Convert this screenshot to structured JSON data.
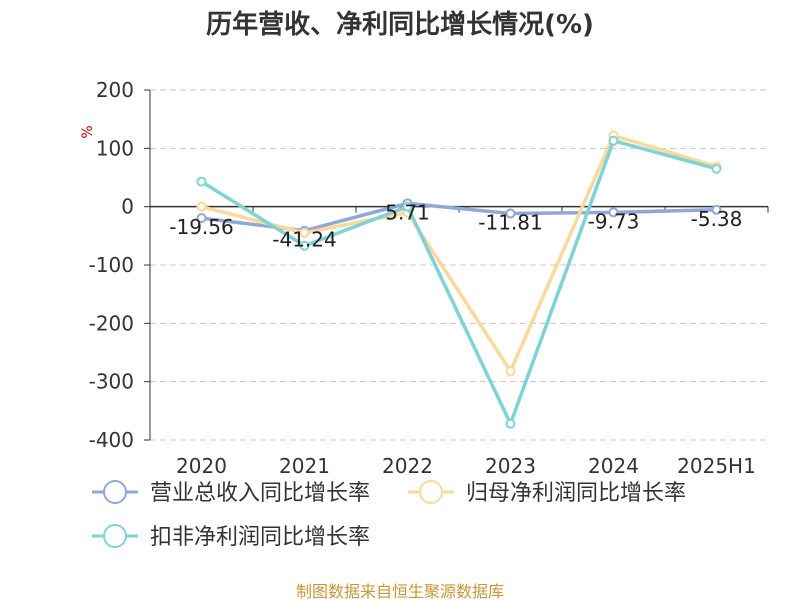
{
  "page": {
    "title": "历年营收、净利同比增长情况(%)",
    "source": "制图数据来自恒生聚源数据库"
  },
  "chart_data": {
    "type": "line",
    "title": "历年营收、净利同比增长情况(%)",
    "categories": [
      "2020",
      "2021",
      "2022",
      "2023",
      "2024",
      "2025H1"
    ],
    "ylabel": "%",
    "ylim": [
      -400,
      200
    ],
    "yticks": [
      200,
      100,
      0,
      -100,
      -200,
      -300,
      -400
    ],
    "grid": true,
    "legend_position": "bottom-left",
    "series": [
      {
        "name": "营业总收入同比增长率",
        "color": "#8fa8d8",
        "values": [
          -19.56,
          -41.24,
          5.71,
          -11.81,
          -9.73,
          -5.38
        ],
        "labels": [
          "-19.56",
          "-41.24",
          "5.71",
          "-11.81",
          "-9.73",
          "-5.38"
        ]
      },
      {
        "name": "归母净利润同比增长率",
        "color": "#fad99a",
        "values": [
          0,
          -45,
          -10,
          -282,
          122,
          69
        ]
      },
      {
        "name": "扣非净利润同比增长率",
        "color": "#7fd3d6",
        "values": [
          43,
          -67,
          0,
          -372,
          113,
          65
        ]
      }
    ]
  }
}
